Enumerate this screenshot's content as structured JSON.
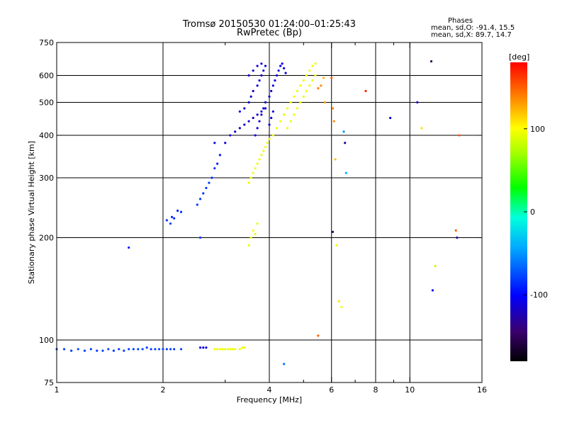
{
  "title": "Tromsø 20150530 01:24:00–01:25:43",
  "subtitle": "RwPretec (Bp)",
  "phases": {
    "heading": "Phases",
    "o_mode": "mean, sd,O: -91.4, 15.5",
    "x_mode": "mean, sd,X: 89.7, 14.7"
  },
  "colorbar": {
    "unit_label": "[deg]",
    "ticks": [
      {
        "value": 100,
        "label": "100"
      },
      {
        "value": 0,
        "label": "0"
      },
      {
        "value": -100,
        "label": "-100"
      }
    ],
    "range": [
      -180,
      180
    ]
  },
  "chart_data": {
    "type": "scatter",
    "title": "Tromsø 20150530 01:24:00–01:25:43",
    "subtitle": "RwPretec (Bp)",
    "xlabel": "Frequency [MHz]",
    "ylabel": "Stationary phase Virtual Height [km]",
    "x_scale": "log",
    "y_scale": "log",
    "xlim": [
      1,
      16
    ],
    "ylim": [
      75,
      750
    ],
    "x_ticks": [
      {
        "value": 1,
        "label": "1"
      },
      {
        "value": 2,
        "label": "2"
      },
      {
        "value": 4,
        "label": "4"
      },
      {
        "value": 6,
        "label": "6"
      },
      {
        "value": 8,
        "label": "8"
      },
      {
        "value": 10,
        "label": "10"
      },
      {
        "value": 16,
        "label": "16"
      }
    ],
    "x_grid": [
      2,
      4,
      6,
      8,
      10
    ],
    "x_minor": [
      3,
      5,
      7,
      9
    ],
    "y_ticks": [
      {
        "value": 75,
        "label": "75"
      },
      {
        "value": 100,
        "label": "100"
      },
      {
        "value": 200,
        "label": "200"
      },
      {
        "value": 300,
        "label": "300"
      },
      {
        "value": 400,
        "label": "400"
      },
      {
        "value": 500,
        "label": "500"
      },
      {
        "value": 600,
        "label": "600"
      },
      {
        "value": 750,
        "label": "750"
      }
    ],
    "y_grid": [
      100,
      200,
      300,
      400,
      500,
      600
    ],
    "grid": true,
    "color_variable": "phase [deg]",
    "series": [
      {
        "points": [
          [
            1.0,
            94,
            -80
          ],
          [
            1.05,
            94,
            -82
          ],
          [
            1.1,
            93,
            -80
          ],
          [
            1.15,
            94,
            -78
          ],
          [
            1.2,
            93,
            -80
          ],
          [
            1.25,
            94,
            -82
          ],
          [
            1.3,
            93,
            -80
          ],
          [
            1.35,
            93,
            -78
          ],
          [
            1.4,
            94,
            -80
          ],
          [
            1.45,
            93,
            -82
          ],
          [
            1.5,
            94,
            -80
          ],
          [
            1.55,
            93,
            -79
          ],
          [
            1.6,
            94,
            -80
          ],
          [
            1.65,
            94,
            -81
          ],
          [
            1.7,
            94,
            -80
          ],
          [
            1.75,
            94,
            -78
          ],
          [
            1.8,
            95,
            -80
          ],
          [
            1.85,
            94,
            -82
          ],
          [
            1.9,
            94,
            -80
          ],
          [
            1.95,
            94,
            -79
          ],
          [
            2.0,
            94,
            -80
          ],
          [
            2.05,
            94,
            -81
          ],
          [
            2.1,
            94,
            -80
          ],
          [
            2.15,
            94,
            -82
          ],
          [
            2.25,
            94,
            -80
          ],
          [
            2.55,
            95,
            -110
          ],
          [
            2.6,
            95,
            -112
          ],
          [
            2.65,
            95,
            -110
          ]
        ]
      },
      {
        "points": [
          [
            2.8,
            94,
            95
          ],
          [
            2.85,
            94,
            92
          ],
          [
            2.9,
            94,
            96
          ],
          [
            2.95,
            94,
            93
          ],
          [
            3.0,
            94,
            94
          ],
          [
            3.05,
            94,
            95
          ],
          [
            3.1,
            94,
            92
          ],
          [
            3.15,
            94,
            96
          ],
          [
            3.2,
            94,
            94
          ],
          [
            3.3,
            94,
            93
          ],
          [
            3.35,
            95,
            95
          ],
          [
            3.4,
            95,
            94
          ]
        ]
      },
      {
        "points": [
          [
            1.6,
            187,
            -95
          ],
          [
            2.05,
            225,
            -85
          ],
          [
            2.1,
            220,
            -82
          ],
          [
            2.12,
            230,
            -88
          ],
          [
            2.15,
            228,
            -86
          ],
          [
            2.2,
            240,
            -90
          ],
          [
            2.25,
            238,
            -88
          ],
          [
            2.55,
            200,
            -80
          ],
          [
            2.5,
            250,
            -82
          ],
          [
            2.55,
            260,
            -80
          ],
          [
            2.6,
            270,
            -85
          ],
          [
            2.65,
            280,
            -83
          ],
          [
            2.7,
            290,
            -80
          ],
          [
            2.75,
            300,
            -85
          ],
          [
            2.8,
            320,
            -88
          ],
          [
            2.85,
            330,
            -90
          ],
          [
            2.9,
            350,
            -92
          ],
          [
            2.8,
            380,
            -95
          ],
          [
            3.0,
            380,
            -110
          ],
          [
            3.1,
            400,
            -115
          ],
          [
            3.2,
            410,
            -112
          ],
          [
            3.3,
            420,
            -118
          ],
          [
            3.4,
            430,
            -115
          ],
          [
            3.5,
            440,
            -120
          ],
          [
            3.6,
            450,
            -118
          ],
          [
            3.7,
            460,
            -120
          ],
          [
            3.8,
            470,
            -115
          ],
          [
            3.9,
            480,
            -118
          ]
        ]
      },
      {
        "points": [
          [
            3.3,
            470,
            -110
          ],
          [
            3.4,
            480,
            -112
          ],
          [
            3.5,
            500,
            -115
          ],
          [
            3.55,
            520,
            -112
          ],
          [
            3.6,
            540,
            -118
          ],
          [
            3.7,
            560,
            -115
          ],
          [
            3.75,
            580,
            -110
          ],
          [
            3.8,
            600,
            -112
          ],
          [
            3.85,
            620,
            -108
          ],
          [
            3.9,
            640,
            -110
          ],
          [
            3.5,
            600,
            -115
          ],
          [
            3.6,
            620,
            -112
          ],
          [
            3.7,
            640,
            -110
          ],
          [
            3.8,
            650,
            -108
          ],
          [
            3.65,
            400,
            -112
          ],
          [
            3.7,
            420,
            -110
          ],
          [
            3.75,
            440,
            -115
          ],
          [
            3.8,
            460,
            -118
          ],
          [
            3.85,
            480,
            -112
          ],
          [
            3.9,
            500,
            -115
          ],
          [
            4.0,
            520,
            -110
          ],
          [
            4.05,
            540,
            -112
          ],
          [
            4.1,
            560,
            -108
          ],
          [
            4.15,
            580,
            -110
          ],
          [
            4.2,
            600,
            -112
          ],
          [
            4.25,
            620,
            -108
          ],
          [
            4.3,
            640,
            -110
          ],
          [
            4.35,
            650,
            -105
          ],
          [
            4.4,
            630,
            -108
          ],
          [
            4.45,
            610,
            -110
          ],
          [
            4.0,
            430,
            -112
          ],
          [
            4.05,
            450,
            -110
          ],
          [
            4.1,
            470,
            -115
          ]
        ]
      },
      {
        "points": [
          [
            3.5,
            190,
            95
          ],
          [
            3.55,
            200,
            92
          ],
          [
            3.6,
            210,
            96
          ],
          [
            3.65,
            205,
            94
          ],
          [
            3.7,
            220,
            93
          ],
          [
            3.5,
            290,
            95
          ],
          [
            3.55,
            300,
            94
          ],
          [
            3.6,
            310,
            92
          ],
          [
            3.65,
            320,
            96
          ],
          [
            3.7,
            330,
            94
          ],
          [
            3.75,
            340,
            95
          ],
          [
            3.8,
            350,
            93
          ],
          [
            3.85,
            360,
            96
          ],
          [
            3.9,
            370,
            94
          ],
          [
            3.95,
            380,
            95
          ],
          [
            4.0,
            390,
            92
          ],
          [
            4.1,
            400,
            96
          ],
          [
            4.2,
            420,
            94
          ],
          [
            4.3,
            440,
            95
          ],
          [
            4.4,
            460,
            93
          ],
          [
            4.5,
            480,
            96
          ],
          [
            4.6,
            500,
            94
          ],
          [
            4.7,
            520,
            95
          ],
          [
            4.8,
            540,
            93
          ],
          [
            4.9,
            560,
            96
          ],
          [
            5.0,
            580,
            94
          ],
          [
            5.1,
            600,
            95
          ],
          [
            5.2,
            620,
            93
          ],
          [
            5.3,
            640,
            96
          ],
          [
            5.4,
            650,
            94
          ],
          [
            4.5,
            420,
            95
          ],
          [
            4.6,
            440,
            93
          ],
          [
            4.7,
            460,
            96
          ],
          [
            4.8,
            480,
            94
          ],
          [
            4.9,
            500,
            95
          ],
          [
            5.0,
            520,
            93
          ],
          [
            5.1,
            540,
            96
          ],
          [
            5.2,
            560,
            94
          ],
          [
            5.3,
            580,
            95
          ],
          [
            5.4,
            600,
            93
          ],
          [
            5.5,
            550,
            140
          ],
          [
            5.6,
            560,
            135
          ],
          [
            5.7,
            590,
            120
          ],
          [
            5.75,
            500,
            130
          ]
        ]
      },
      {
        "points": [
          [
            6.0,
            590,
            150
          ],
          [
            6.05,
            480,
            140
          ],
          [
            6.1,
            440,
            135
          ],
          [
            6.15,
            340,
            120
          ],
          [
            6.2,
            190,
            95
          ],
          [
            6.3,
            130,
            110
          ],
          [
            6.4,
            125,
            100
          ],
          [
            6.5,
            410,
            -50
          ],
          [
            6.55,
            380,
            -130
          ],
          [
            6.6,
            310,
            -40
          ],
          [
            6.05,
            208,
            -150
          ],
          [
            5.5,
            103,
            150
          ],
          [
            7.5,
            540,
            170
          ],
          [
            8.8,
            450,
            -110
          ],
          [
            10.5,
            500,
            -120
          ],
          [
            10.8,
            420,
            110
          ],
          [
            11.5,
            660,
            -150
          ],
          [
            11.6,
            140,
            -110
          ],
          [
            11.8,
            165,
            80
          ],
          [
            13.5,
            210,
            150
          ],
          [
            13.6,
            200,
            -130
          ],
          [
            13.8,
            400,
            155
          ],
          [
            4.4,
            85,
            -60
          ]
        ]
      }
    ]
  }
}
